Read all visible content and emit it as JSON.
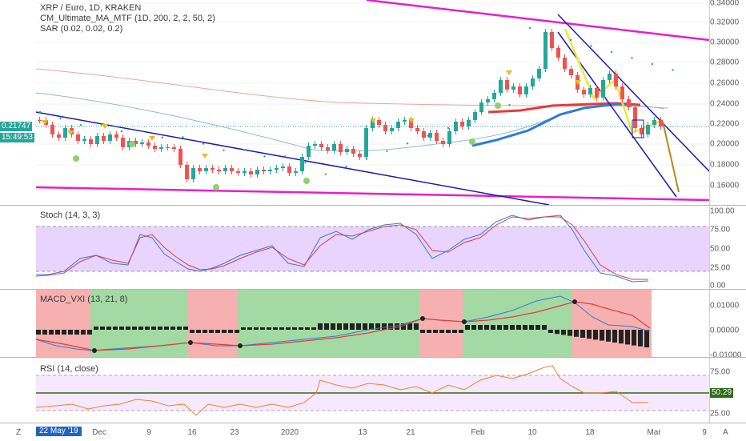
{
  "main_pane": {
    "title": "XRP / Euro, 1D, KRAKEN",
    "indicators": [
      "CM_Ultimate_MA_MTF (1D, 200, 2, 2, 50, 2)",
      "SAR (0.02, 0.02, 0.2)"
    ],
    "price_ticks": [
      "0.34000",
      "0.32000",
      "0.30000",
      "0.28000",
      "0.26000",
      "0.24000",
      "0.22000",
      "0.20000",
      "0.18000",
      "0.16000"
    ],
    "last_price": "0.21747",
    "countdown": "15:49:53"
  },
  "stoch_pane": {
    "title": "Stoch (14, 3, 3)",
    "ticks": [
      "100.00",
      "75.00",
      "50.00",
      "25.00",
      "0.00"
    ]
  },
  "macd_pane": {
    "title": "MACD_VXI (13, 21, 8)",
    "ticks": [
      "0.01000",
      "0.00000",
      "-0.01000"
    ]
  },
  "rsi_pane": {
    "title": "RSI (14, close)",
    "ticks": [
      "75.00",
      "25.00"
    ],
    "current_value": "50.29"
  },
  "x_axis": {
    "labels": [
      "Dec",
      "9",
      "16",
      "23",
      "2020",
      "13",
      "21",
      "Feb",
      "10",
      "18",
      "Mar",
      "9"
    ],
    "cursor_date": "22 May '19",
    "left_button": "Z",
    "right_button": "A"
  },
  "colors": {
    "up": "#26a69a",
    "down": "#ef5350",
    "magenta": "#e91ec8",
    "channel": "#1a1ab8",
    "stoch_fill": "#e8d4ff",
    "macd_green": "#a3d9a3",
    "macd_red": "#f7b0b0",
    "rsi_fill": "#f5e8ff",
    "rsi_line": "#f08030"
  }
}
